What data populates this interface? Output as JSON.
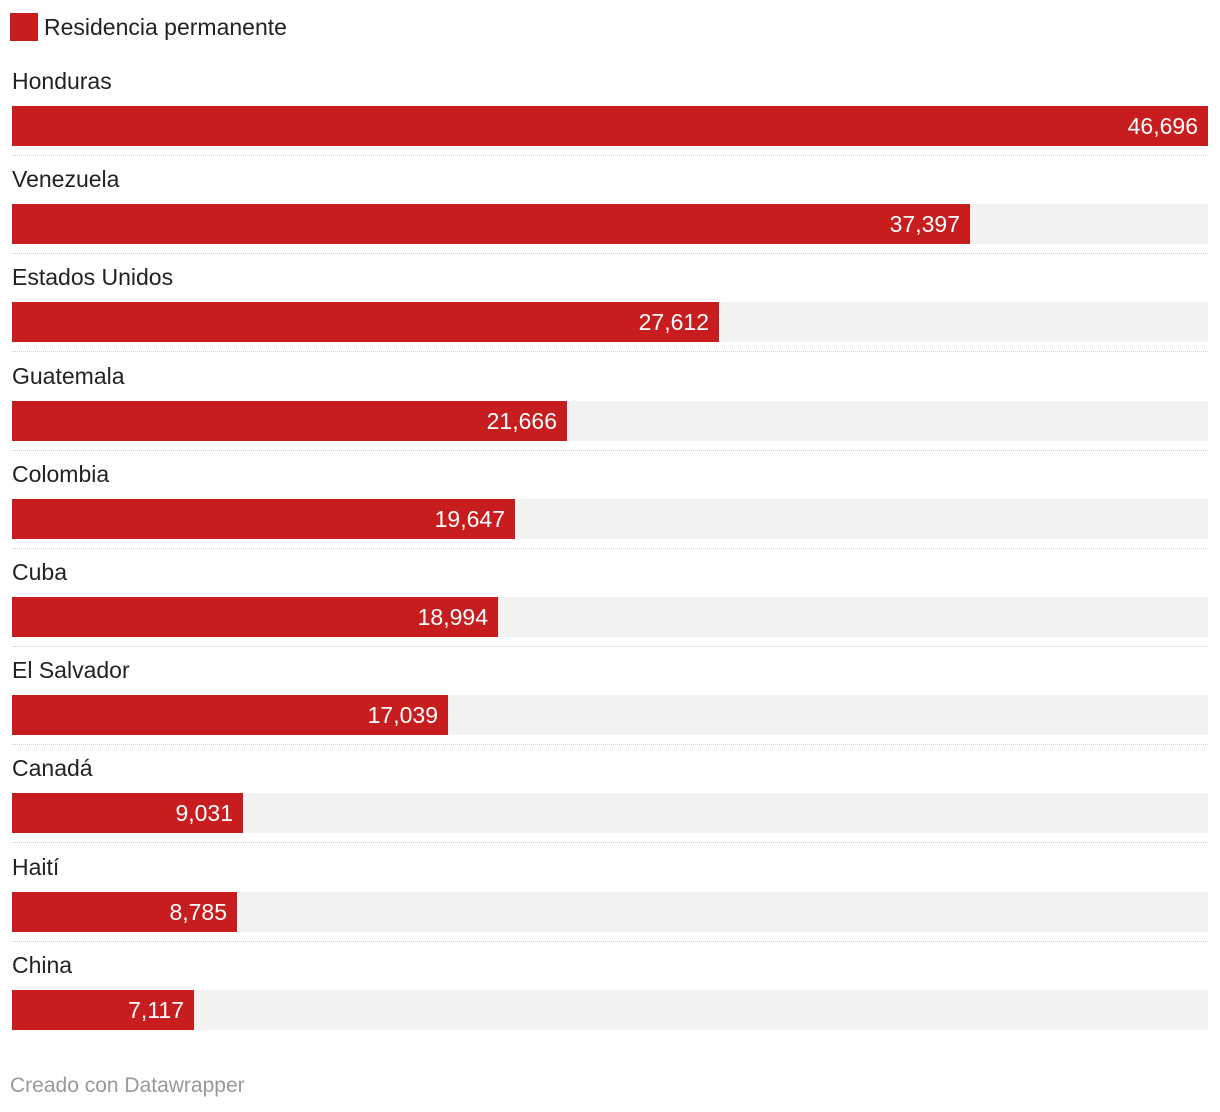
{
  "colors": {
    "bar": "#c81d1f",
    "track": "#f2f2f2"
  },
  "chart_data": {
    "type": "bar",
    "orientation": "horizontal",
    "title": "",
    "legend": [
      "Residencia permanente"
    ],
    "legend_placement": "top-left",
    "categories": [
      "Honduras",
      "Venezuela",
      "Estados Unidos",
      "Guatemala",
      "Colombia",
      "Cuba",
      "El Salvador",
      "Canadá",
      "Haití",
      "China"
    ],
    "series": [
      {
        "name": "Residencia permanente",
        "values": [
          46696,
          37397,
          27612,
          21666,
          19647,
          18994,
          17039,
          9031,
          8785,
          7117
        ],
        "labels": [
          "46,696",
          "37,397",
          "27,612",
          "21,666",
          "19,647",
          "18,994",
          "17,039",
          "9,031",
          "8,785",
          "7,117"
        ]
      }
    ],
    "xlim": [
      0,
      46696
    ],
    "grid": false
  },
  "footer": {
    "credit": "Creado con Datawrapper"
  }
}
